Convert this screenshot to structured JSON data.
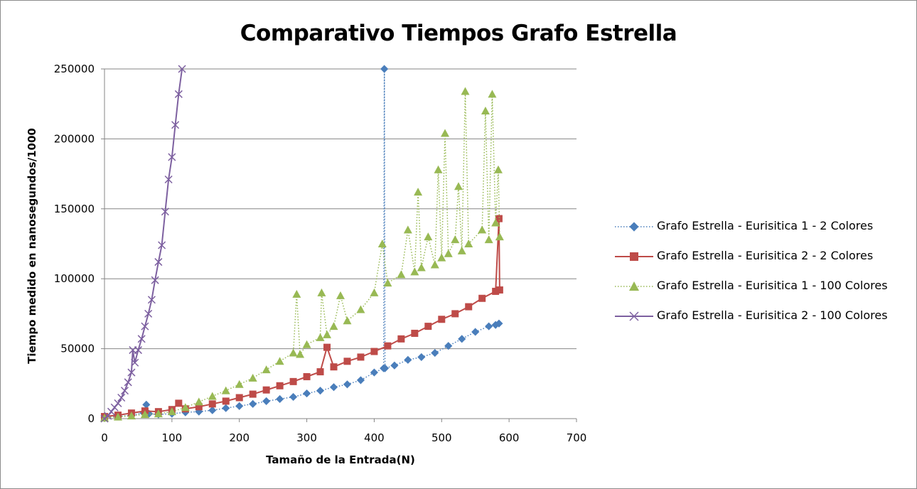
{
  "chart_data": {
    "type": "line",
    "title": "Comparativo Tiempos Grafo Estrella",
    "xlabel": "Tamaño de la Entrada(N)",
    "ylabel": "Tiempo medido en nanosegundos/1000",
    "xlim": [
      0,
      700
    ],
    "ylim": [
      0,
      250000
    ],
    "x_ticks": [
      "0",
      "100",
      "200",
      "300",
      "400",
      "500",
      "600",
      "700"
    ],
    "y_ticks": [
      "0",
      "50000",
      "100000",
      "150000",
      "200000",
      "250000"
    ],
    "grid": "horizontal",
    "legend_position": "right",
    "series": [
      {
        "name": "Grafo Estrella - Eurisitica 1 - 2 Colores",
        "color": "#4a7ebb",
        "line": "dotted",
        "marker": "diamond",
        "points": [
          [
            0,
            1000
          ],
          [
            20,
            1500
          ],
          [
            40,
            2500
          ],
          [
            58,
            4000
          ],
          [
            62,
            10000
          ],
          [
            66,
            3500
          ],
          [
            80,
            3000
          ],
          [
            100,
            3500
          ],
          [
            120,
            4500
          ],
          [
            140,
            5000
          ],
          [
            160,
            6000
          ],
          [
            180,
            7500
          ],
          [
            200,
            9000
          ],
          [
            220,
            10500
          ],
          [
            240,
            12500
          ],
          [
            260,
            14000
          ],
          [
            280,
            15500
          ],
          [
            300,
            18000
          ],
          [
            320,
            20000
          ],
          [
            340,
            22500
          ],
          [
            360,
            24500
          ],
          [
            380,
            27500
          ],
          [
            400,
            33000
          ],
          [
            414,
            36000
          ],
          [
            415,
            250000
          ],
          [
            416,
            36000
          ],
          [
            430,
            38000
          ],
          [
            450,
            42000
          ],
          [
            470,
            44000
          ],
          [
            490,
            47000
          ],
          [
            510,
            52000
          ],
          [
            530,
            57000
          ],
          [
            550,
            62000
          ],
          [
            570,
            66000
          ],
          [
            580,
            67000
          ],
          [
            585,
            68000
          ]
        ]
      },
      {
        "name": "Grafo Estrella - Eurisitica 2 - 2 Colores",
        "color": "#be4b48",
        "line": "solid",
        "marker": "square",
        "points": [
          [
            0,
            1500
          ],
          [
            20,
            2500
          ],
          [
            40,
            4000
          ],
          [
            60,
            5500
          ],
          [
            80,
            5000
          ],
          [
            100,
            6500
          ],
          [
            110,
            11000
          ],
          [
            120,
            7000
          ],
          [
            140,
            8500
          ],
          [
            160,
            10500
          ],
          [
            180,
            12500
          ],
          [
            200,
            15000
          ],
          [
            220,
            17500
          ],
          [
            240,
            20500
          ],
          [
            260,
            23500
          ],
          [
            280,
            26500
          ],
          [
            300,
            30000
          ],
          [
            320,
            33500
          ],
          [
            330,
            51000
          ],
          [
            340,
            37000
          ],
          [
            360,
            41000
          ],
          [
            380,
            44000
          ],
          [
            400,
            48000
          ],
          [
            420,
            52000
          ],
          [
            440,
            57000
          ],
          [
            460,
            61000
          ],
          [
            480,
            66000
          ],
          [
            500,
            71000
          ],
          [
            520,
            75000
          ],
          [
            540,
            80000
          ],
          [
            560,
            86000
          ],
          [
            580,
            91000
          ],
          [
            585,
            143000
          ],
          [
            586,
            92000
          ]
        ]
      },
      {
        "name": "Grafo Estrella - Eurisitica 1 - 100 Colores",
        "color": "#98b954",
        "line": "dotted",
        "marker": "triangle",
        "points": [
          [
            0,
            500
          ],
          [
            20,
            1200
          ],
          [
            40,
            2000
          ],
          [
            60,
            3000
          ],
          [
            80,
            3500
          ],
          [
            100,
            5000
          ],
          [
            120,
            8000
          ],
          [
            140,
            12000
          ],
          [
            160,
            16000
          ],
          [
            180,
            20000
          ],
          [
            200,
            24500
          ],
          [
            220,
            29000
          ],
          [
            240,
            35000
          ],
          [
            260,
            41000
          ],
          [
            280,
            47000
          ],
          [
            285,
            89000
          ],
          [
            290,
            46000
          ],
          [
            300,
            53000
          ],
          [
            320,
            58000
          ],
          [
            322,
            90000
          ],
          [
            330,
            60000
          ],
          [
            340,
            66000
          ],
          [
            350,
            88000
          ],
          [
            360,
            70000
          ],
          [
            380,
            78000
          ],
          [
            400,
            90000
          ],
          [
            412,
            125000
          ],
          [
            420,
            97000
          ],
          [
            440,
            103000
          ],
          [
            450,
            135000
          ],
          [
            460,
            105000
          ],
          [
            465,
            162000
          ],
          [
            470,
            108000
          ],
          [
            480,
            130000
          ],
          [
            490,
            110000
          ],
          [
            495,
            178000
          ],
          [
            500,
            115000
          ],
          [
            505,
            204000
          ],
          [
            510,
            118000
          ],
          [
            520,
            128000
          ],
          [
            525,
            166000
          ],
          [
            530,
            120000
          ],
          [
            535,
            234000
          ],
          [
            540,
            125000
          ],
          [
            560,
            135000
          ],
          [
            565,
            220000
          ],
          [
            570,
            128000
          ],
          [
            575,
            232000
          ],
          [
            580,
            140000
          ],
          [
            584,
            178000
          ],
          [
            586,
            130000
          ]
        ]
      },
      {
        "name": "Grafo Estrella - Eurisitica 2 - 100 Colores",
        "color": "#7d60a0",
        "line": "solid",
        "marker": "x",
        "points": [
          [
            0,
            0
          ],
          [
            5,
            2000
          ],
          [
            10,
            5000
          ],
          [
            15,
            8000
          ],
          [
            20,
            11000
          ],
          [
            25,
            15000
          ],
          [
            30,
            20000
          ],
          [
            35,
            26000
          ],
          [
            40,
            33000
          ],
          [
            42,
            49000
          ],
          [
            45,
            40000
          ],
          [
            50,
            49000
          ],
          [
            55,
            57000
          ],
          [
            60,
            66000
          ],
          [
            65,
            75000
          ],
          [
            70,
            85000
          ],
          [
            75,
            99000
          ],
          [
            80,
            112000
          ],
          [
            85,
            124000
          ],
          [
            90,
            148000
          ],
          [
            95,
            171000
          ],
          [
            100,
            187000
          ],
          [
            105,
            210000
          ],
          [
            110,
            232000
          ],
          [
            115,
            250000
          ]
        ]
      }
    ]
  }
}
